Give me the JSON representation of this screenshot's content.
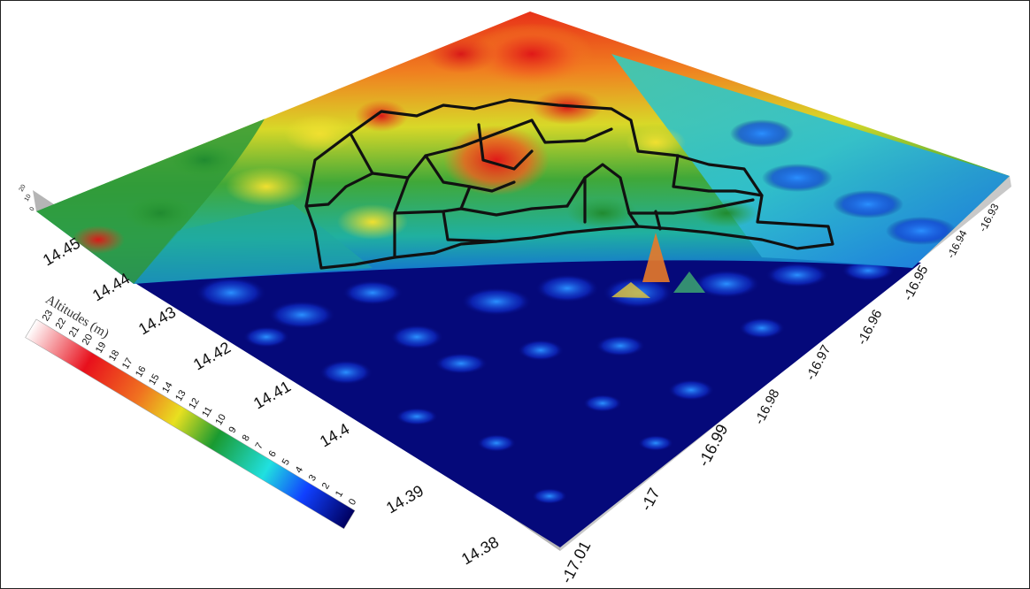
{
  "figure": {
    "colors": {
      "high": "#ffffff",
      "red": "#e8101c",
      "orange": "#f07020",
      "yellow": "#e8e020",
      "green": "#1a9a30",
      "cyan": "#20e0e0",
      "blue": "#1040ff",
      "navy": "#000060",
      "ocean": "#050a7a",
      "side_wall": "#b5b5b5",
      "roads": "#111111"
    }
  },
  "legend": {
    "title": "Altitudes (m)",
    "values": [
      "23",
      "22",
      "21",
      "20",
      "19",
      "18",
      "17",
      "16",
      "15",
      "14",
      "13",
      "12",
      "11",
      "10",
      "9",
      "8",
      "7",
      "6",
      "5",
      "4",
      "3",
      "2",
      "1",
      "0"
    ]
  },
  "lat_axis": {
    "ticks": [
      "14.45",
      "14.44",
      "14.43",
      "14.42",
      "14.41",
      "14.4",
      "14.39",
      "14.38"
    ]
  },
  "lon_axis": {
    "ticks": [
      "-17.01",
      "-17",
      "-16.99",
      "-16.98",
      "-16.97",
      "-16.96",
      "-16.95",
      "-16.94",
      "-16.93"
    ]
  },
  "z_axis": {
    "ticks": [
      "20",
      "10",
      "0"
    ]
  }
}
